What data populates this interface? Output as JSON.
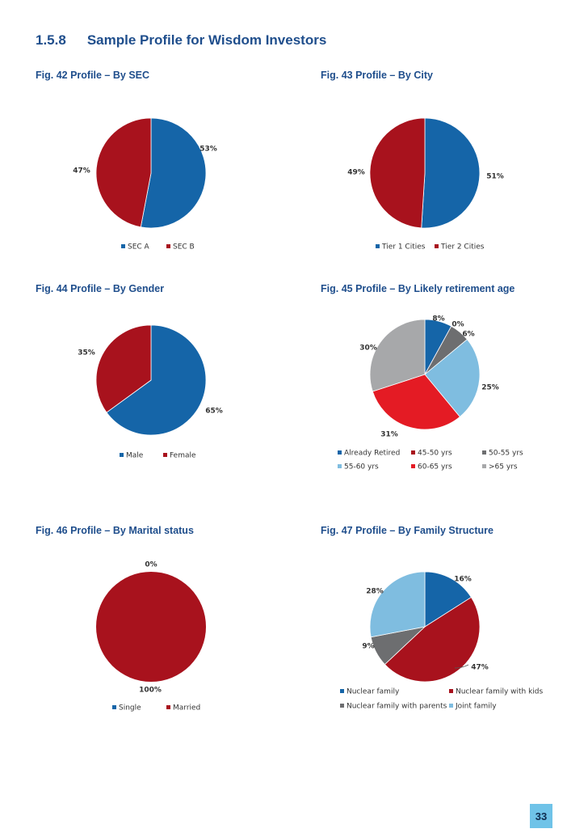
{
  "section": {
    "number": "1.5.8",
    "title": "Sample Profile for Wisdom Investors"
  },
  "page_number": "33",
  "figures": [
    {
      "title": "Fig. 42  Profile – By SEC"
    },
    {
      "title": "Fig. 43  Profile – By City"
    },
    {
      "title": "Fig. 44  Profile – By Gender"
    },
    {
      "title": "Fig. 45  Profile – By Likely retirement age"
    },
    {
      "title": "Fig. 46  Profile – By Marital status"
    },
    {
      "title": "Fig. 47  Profile – By Family Structure"
    }
  ],
  "chart_data": [
    {
      "type": "pie",
      "categories": [
        "SEC A",
        "SEC B"
      ],
      "values": [
        53,
        47
      ],
      "labels": [
        "53%",
        "47%"
      ],
      "colors": [
        "#1565a8",
        "#a8121d"
      ],
      "legend": "bottom"
    },
    {
      "type": "pie",
      "categories": [
        "Tier 1 Cities",
        "Tier 2 Cities"
      ],
      "values": [
        51,
        49
      ],
      "labels": [
        "51%",
        "49%"
      ],
      "colors": [
        "#1565a8",
        "#a8121d"
      ],
      "legend": "bottom"
    },
    {
      "type": "pie",
      "categories": [
        "Male",
        "Female"
      ],
      "values": [
        65,
        35
      ],
      "labels": [
        "65%",
        "35%"
      ],
      "colors": [
        "#1565a8",
        "#a8121d"
      ],
      "legend": "bottom"
    },
    {
      "type": "pie",
      "categories": [
        "Already Retired",
        "45-50 yrs",
        "50-55 yrs",
        "55-60 yrs",
        "60-65 yrs",
        ">65 yrs"
      ],
      "values": [
        8,
        0,
        6,
        25,
        31,
        30
      ],
      "labels": [
        "8%",
        "0%",
        "6%",
        "25%",
        "31%",
        "30%"
      ],
      "colors": [
        "#1565a8",
        "#a8121d",
        "#6d6e70",
        "#7fbde0",
        "#e41b24",
        "#a7a8aa"
      ],
      "legend": "bottom"
    },
    {
      "type": "pie",
      "categories": [
        "Single",
        "Married"
      ],
      "values": [
        0,
        100
      ],
      "labels": [
        "0%",
        "100%"
      ],
      "colors": [
        "#1565a8",
        "#a8121d"
      ],
      "legend": "bottom"
    },
    {
      "type": "pie",
      "categories": [
        "Nuclear family",
        "Nuclear family with kids",
        "Nuclear family with parents",
        "Joint family"
      ],
      "values": [
        16,
        47,
        9,
        28
      ],
      "labels": [
        "16%",
        "47%",
        "9%",
        "28%"
      ],
      "colors": [
        "#1565a8",
        "#a8121d",
        "#6d6e70",
        "#7fbde0"
      ],
      "legend": "bottom"
    }
  ]
}
